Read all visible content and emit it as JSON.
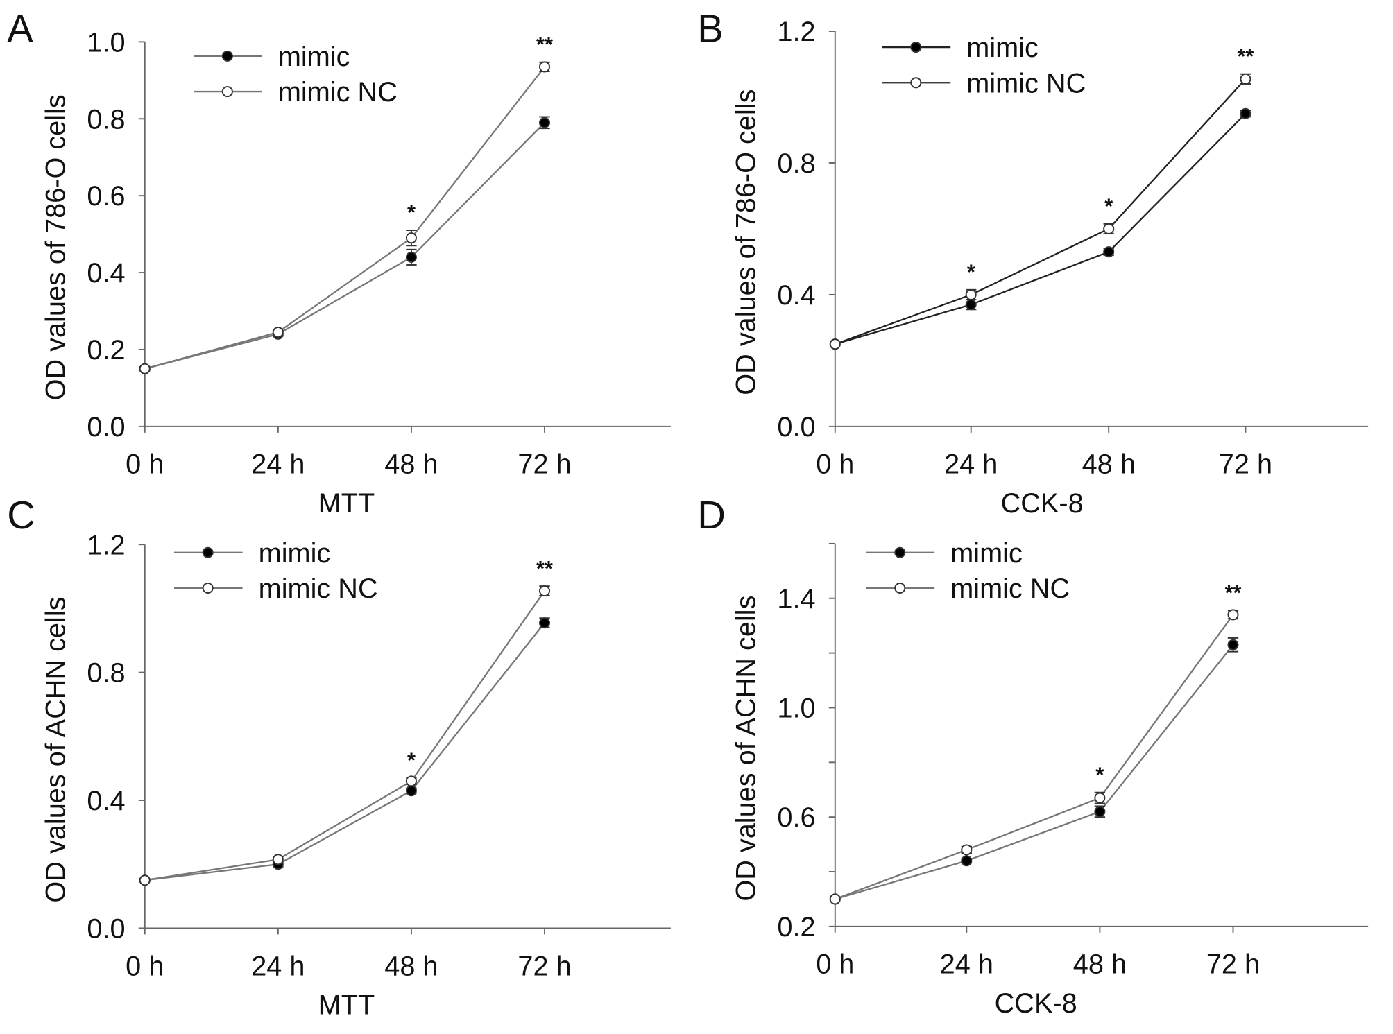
{
  "chart_data": [
    {
      "panel": "A",
      "type": "line",
      "categories": [
        "0 h",
        "24 h",
        "48 h",
        "72 h"
      ],
      "xlabel": "MTT",
      "ylabel": "OD values of 786-O cells",
      "ylim": [
        0,
        1.0
      ],
      "yticks": [
        0.0,
        0.2,
        0.4,
        0.6,
        0.8,
        1.0
      ],
      "ytick_labels": [
        "0.0",
        "0.2",
        "0.4",
        "0.6",
        "0.8",
        "1.0"
      ],
      "legend": "top-left",
      "series": [
        {
          "name": "mimic",
          "marker": "filled-circle",
          "values": [
            0.15,
            0.24,
            0.44,
            0.79
          ],
          "errors": [
            0.005,
            0.005,
            0.02,
            0.015
          ]
        },
        {
          "name": "mimic NC",
          "marker": "open-circle",
          "values": [
            0.15,
            0.245,
            0.49,
            0.935
          ],
          "errors": [
            0.005,
            0.005,
            0.02,
            0.012
          ]
        }
      ],
      "annotations": [
        "",
        "",
        "*",
        "**"
      ],
      "line_color": "#777777"
    },
    {
      "panel": "B",
      "type": "line",
      "categories": [
        "0 h",
        "24 h",
        "48 h",
        "72 h"
      ],
      "xlabel": "CCK-8",
      "ylabel": "OD values of 786-O cells",
      "ylim": [
        0,
        1.2
      ],
      "yticks": [
        0.0,
        0.4,
        0.8,
        1.2
      ],
      "ytick_labels": [
        "0.0",
        "0.4",
        "0.8",
        "1.2"
      ],
      "legend": "top-left",
      "series": [
        {
          "name": "mimic",
          "marker": "filled-circle",
          "values": [
            0.25,
            0.37,
            0.53,
            0.95
          ],
          "errors": [
            0.005,
            0.015,
            0.01,
            0.01
          ]
        },
        {
          "name": "mimic NC",
          "marker": "open-circle",
          "values": [
            0.25,
            0.4,
            0.6,
            1.055
          ],
          "errors": [
            0.005,
            0.015,
            0.015,
            0.015
          ]
        }
      ],
      "annotations": [
        "",
        "*",
        "*",
        "**"
      ],
      "line_color": "#222222"
    },
    {
      "panel": "C",
      "type": "line",
      "categories": [
        "0 h",
        "24 h",
        "48 h",
        "72 h"
      ],
      "xlabel": "MTT",
      "ylabel": "OD values of ACHN cells",
      "ylim": [
        0,
        1.2
      ],
      "yticks": [
        0.0,
        0.4,
        0.8,
        1.2
      ],
      "ytick_labels": [
        "0.0",
        "0.4",
        "0.8",
        "1.2"
      ],
      "legend": "top-left",
      "series": [
        {
          "name": "mimic",
          "marker": "filled-circle",
          "values": [
            0.15,
            0.2,
            0.43,
            0.955
          ],
          "errors": [
            0.005,
            0.008,
            0.008,
            0.015
          ]
        },
        {
          "name": "mimic NC",
          "marker": "open-circle",
          "values": [
            0.15,
            0.215,
            0.46,
            1.055
          ],
          "errors": [
            0.005,
            0.008,
            0.01,
            0.015
          ]
        }
      ],
      "annotations": [
        "",
        "",
        "*",
        "**"
      ],
      "line_color": "#777777"
    },
    {
      "panel": "D",
      "type": "line",
      "categories": [
        "0 h",
        "24 h",
        "48 h",
        "72 h"
      ],
      "xlabel": "CCK-8",
      "ylabel": "OD values of ACHN cells",
      "ylim": [
        0.2,
        1.6
      ],
      "yticks": [
        0.2,
        0.4,
        0.6,
        0.8,
        1.0,
        1.2,
        1.4,
        1.6
      ],
      "ytick_labels": [
        "0.2",
        "",
        "0.6",
        "",
        "1.0",
        "",
        "1.4",
        ""
      ],
      "legend": "top-left",
      "series": [
        {
          "name": "mimic",
          "marker": "filled-circle",
          "values": [
            0.3,
            0.44,
            0.62,
            1.23
          ],
          "errors": [
            0.005,
            0.008,
            0.02,
            0.025
          ]
        },
        {
          "name": "mimic NC",
          "marker": "open-circle",
          "values": [
            0.3,
            0.48,
            0.67,
            1.34
          ],
          "errors": [
            0.005,
            0.012,
            0.02,
            0.015
          ]
        }
      ],
      "annotations": [
        "",
        "",
        "*",
        "**"
      ],
      "line_color": "#777777"
    }
  ]
}
